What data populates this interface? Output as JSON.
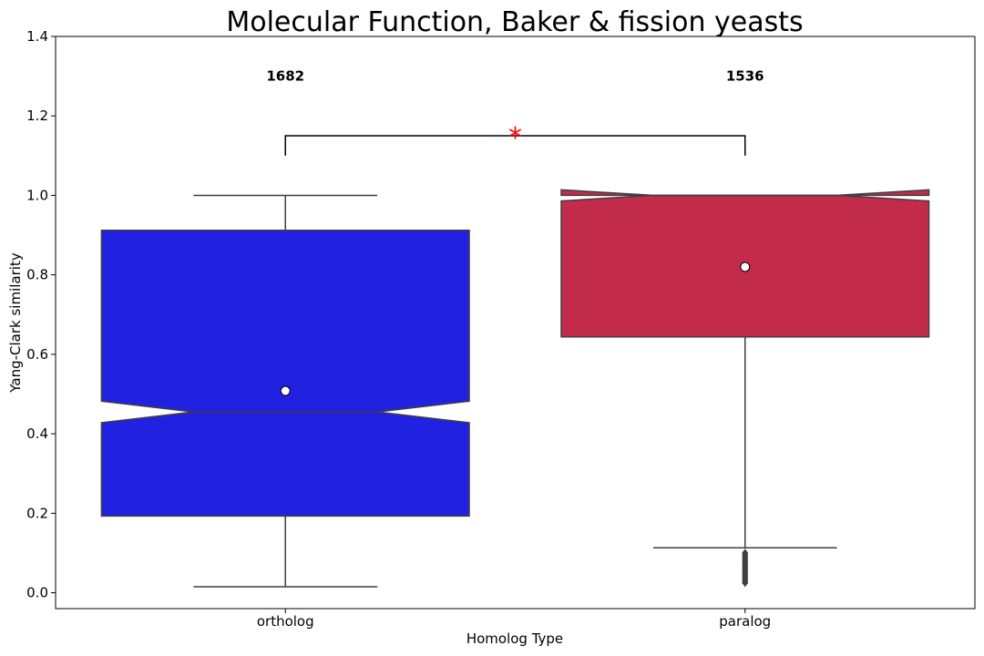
{
  "chart_data": {
    "type": "box",
    "title": "Molecular Function, Baker & fission yeasts",
    "xlabel": "Homolog Type",
    "ylabel": "Yang-Clark similarity",
    "ylim": [
      -0.04,
      1.4
    ],
    "yticks": [
      0.0,
      0.2,
      0.4,
      0.6,
      0.8,
      1.0,
      1.2,
      1.4
    ],
    "ytick_labels": [
      "0.0",
      "0.2",
      "0.4",
      "0.6",
      "0.8",
      "1.0",
      "1.2",
      "1.4"
    ],
    "notched": true,
    "categories": [
      "ortholog",
      "paralog"
    ],
    "boxes": [
      {
        "name": "ortholog",
        "color": "#2121e2",
        "count_label": "1682",
        "whisker_low": 0.015,
        "q1": 0.193,
        "median": 0.455,
        "q3": 0.912,
        "whisker_high": 1.0,
        "notch_low": 0.428,
        "notch_high": 0.482,
        "mean": 0.508,
        "outliers": []
      },
      {
        "name": "paralog",
        "color": "#c32b4b",
        "count_label": "1536",
        "whisker_low": 0.113,
        "q1": 0.644,
        "median": 1.0,
        "q3": 1.0,
        "whisker_high": 1.0,
        "notch_low": 0.986,
        "notch_high": 1.014,
        "mean": 0.82,
        "outliers": [
          0.1,
          0.095,
          0.09,
          0.085,
          0.08,
          0.075,
          0.07,
          0.065,
          0.06,
          0.055,
          0.05,
          0.045,
          0.04,
          0.035,
          0.03,
          0.025
        ]
      }
    ],
    "significance": {
      "label": "*",
      "color": "#ff0000",
      "bar_y": 1.15,
      "leg_y": 1.1
    },
    "count_label_y": 1.3
  }
}
